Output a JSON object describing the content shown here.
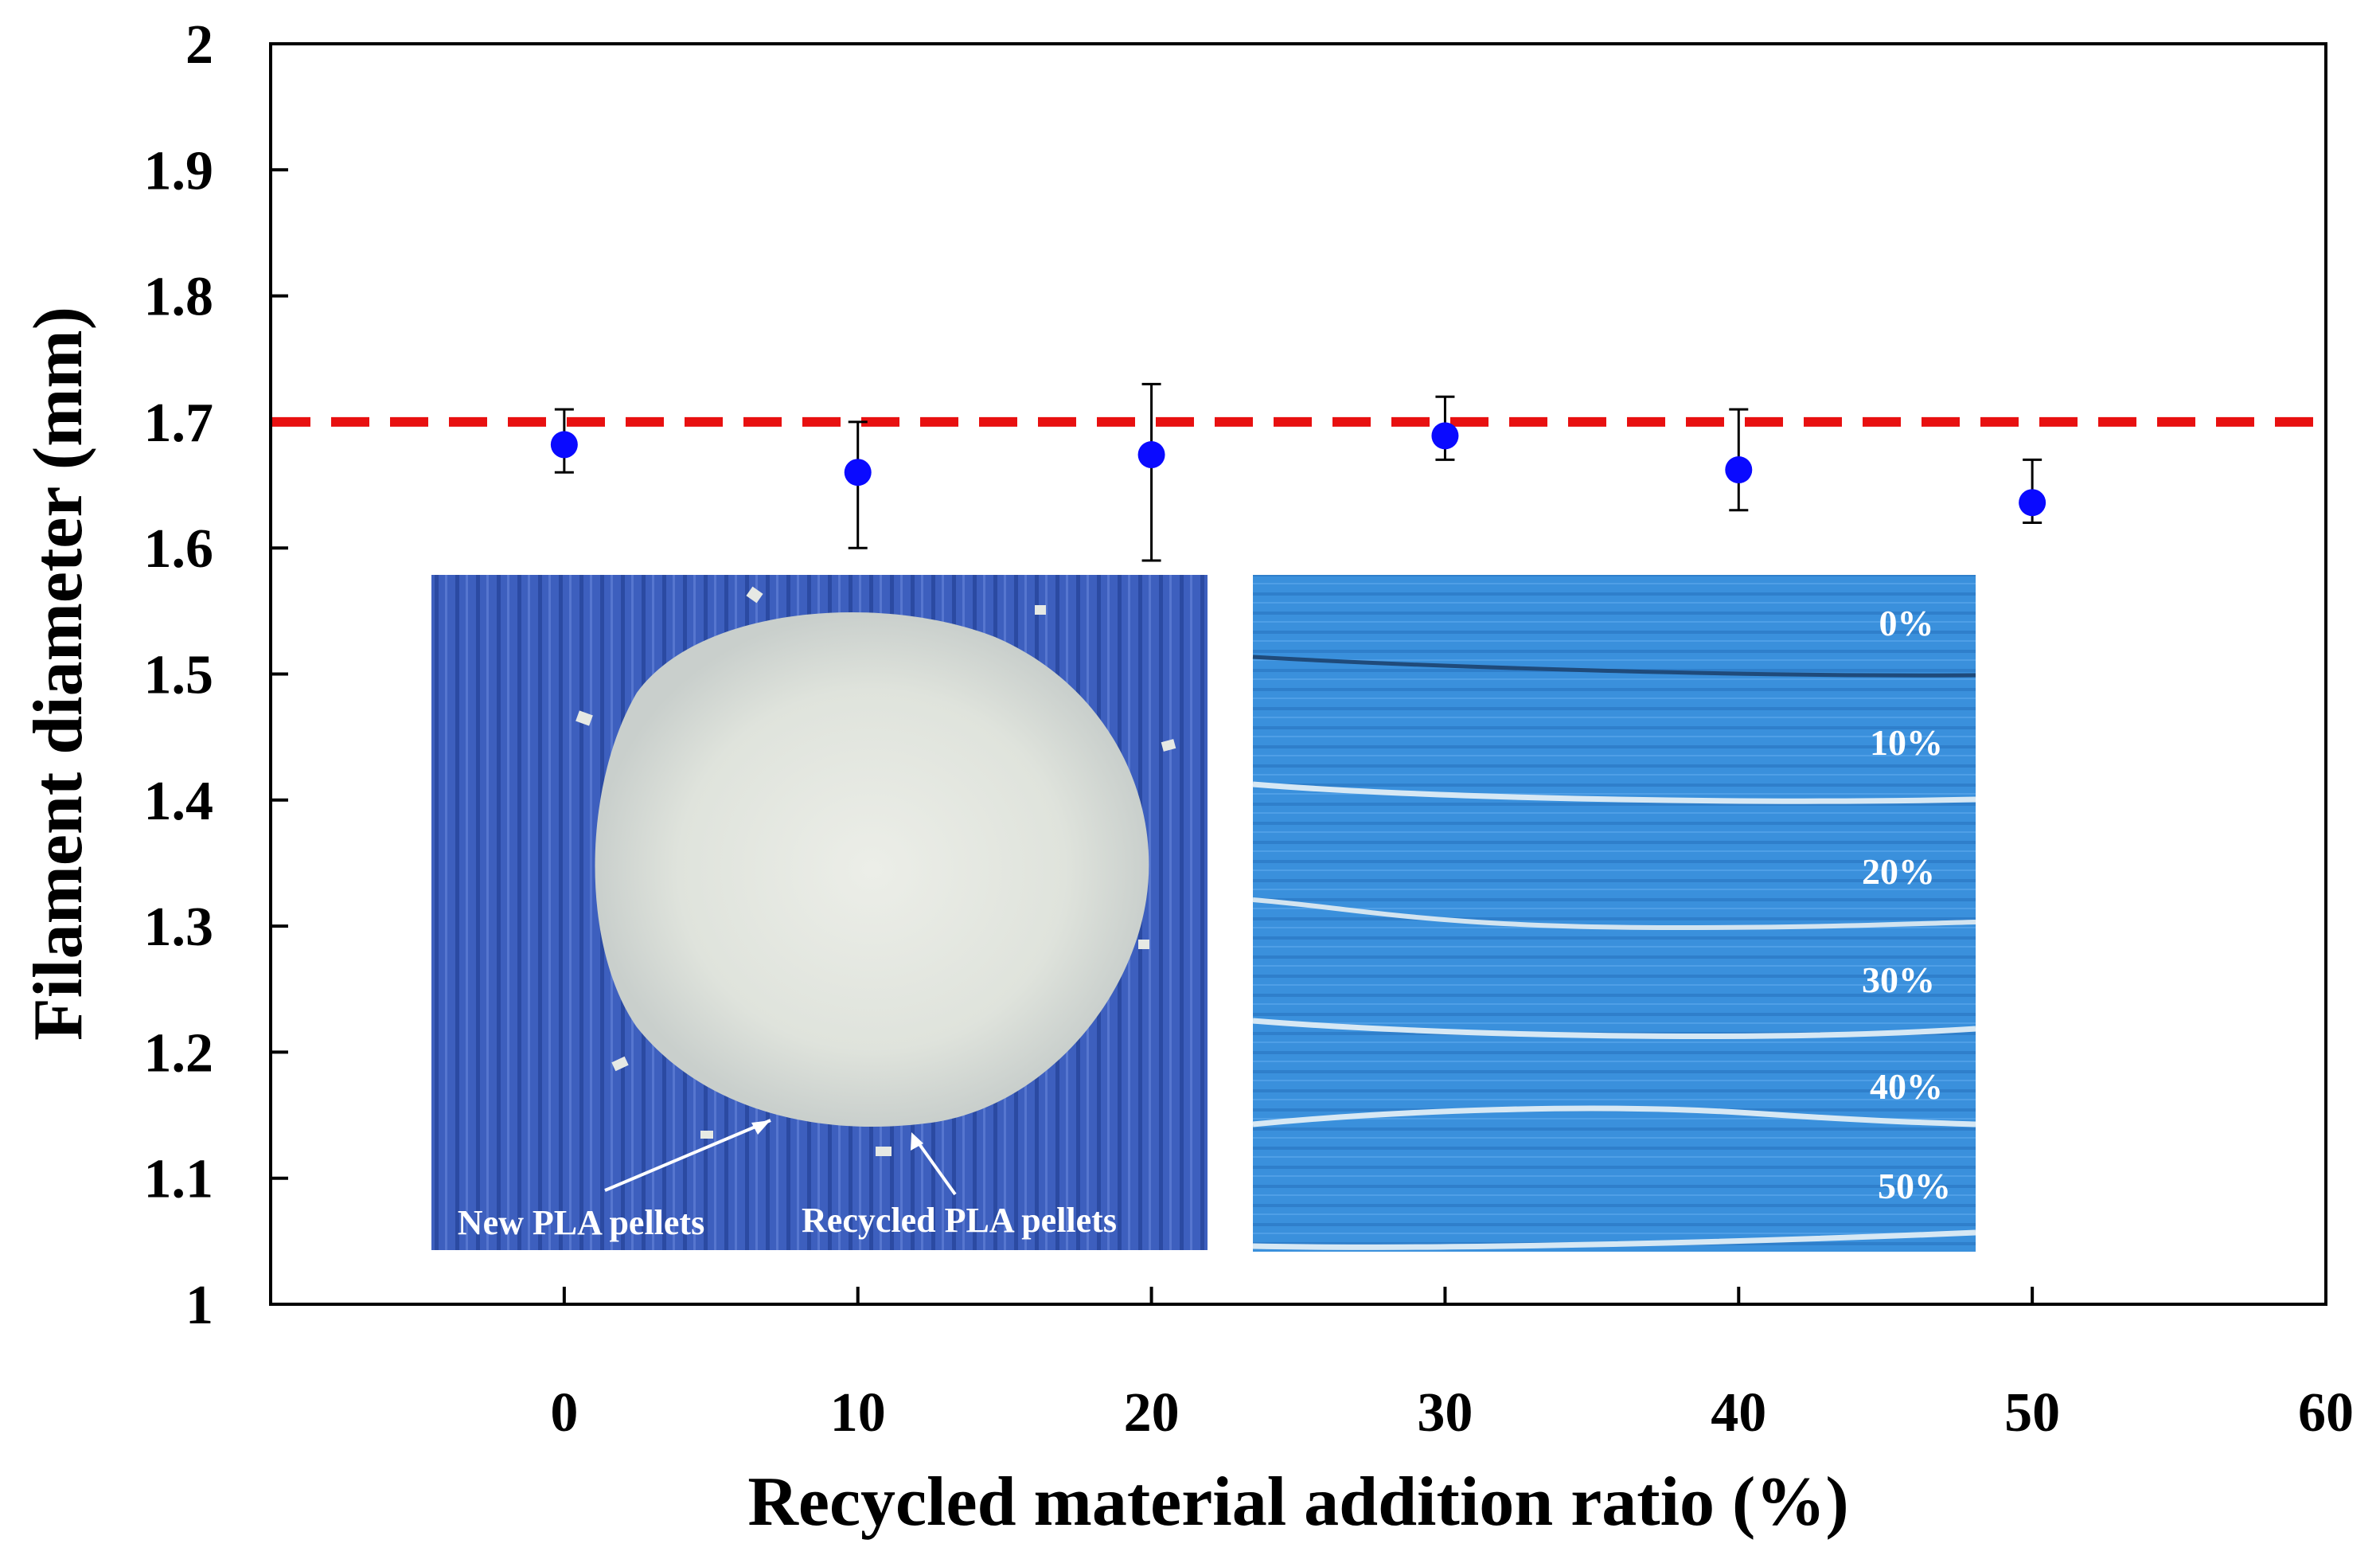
{
  "chart_data": {
    "type": "scatter",
    "title": "",
    "xlabel": "Recycled material addition ratio (%)",
    "ylabel": "Filament diameter  (mm)",
    "xlim": [
      -10,
      60
    ],
    "ylim": [
      1,
      2
    ],
    "xticks": [
      "0",
      "10",
      "20",
      "30",
      "40",
      "50",
      "60"
    ],
    "yticks": [
      "1",
      "1.1",
      "1.2",
      "1.3",
      "1.4",
      "1.5",
      "1.6",
      "1.7",
      "1.8",
      "1.9",
      "2"
    ],
    "grid": false,
    "series": [
      {
        "name": "Filament diameter",
        "color": "#0a0aff",
        "x": [
          0,
          10,
          20,
          30,
          40,
          50
        ],
        "y": [
          1.682,
          1.66,
          1.674,
          1.689,
          1.662,
          1.636
        ],
        "error_upper": [
          1.71,
          1.7,
          1.73,
          1.72,
          1.71,
          1.67
        ],
        "error_lower": [
          1.66,
          1.6,
          1.59,
          1.67,
          1.63,
          1.62
        ]
      }
    ],
    "reference_line": {
      "y": 1.7,
      "style": "dashed",
      "color": "#e81010"
    },
    "insets": [
      {
        "name": "pellets-photo",
        "labels": [
          "New PLA pellets",
          "Recycled PLA pellets"
        ]
      },
      {
        "name": "filaments-photo",
        "labels": [
          "0%",
          "10%",
          "20%",
          "30%",
          "40%",
          "50%"
        ]
      }
    ]
  }
}
